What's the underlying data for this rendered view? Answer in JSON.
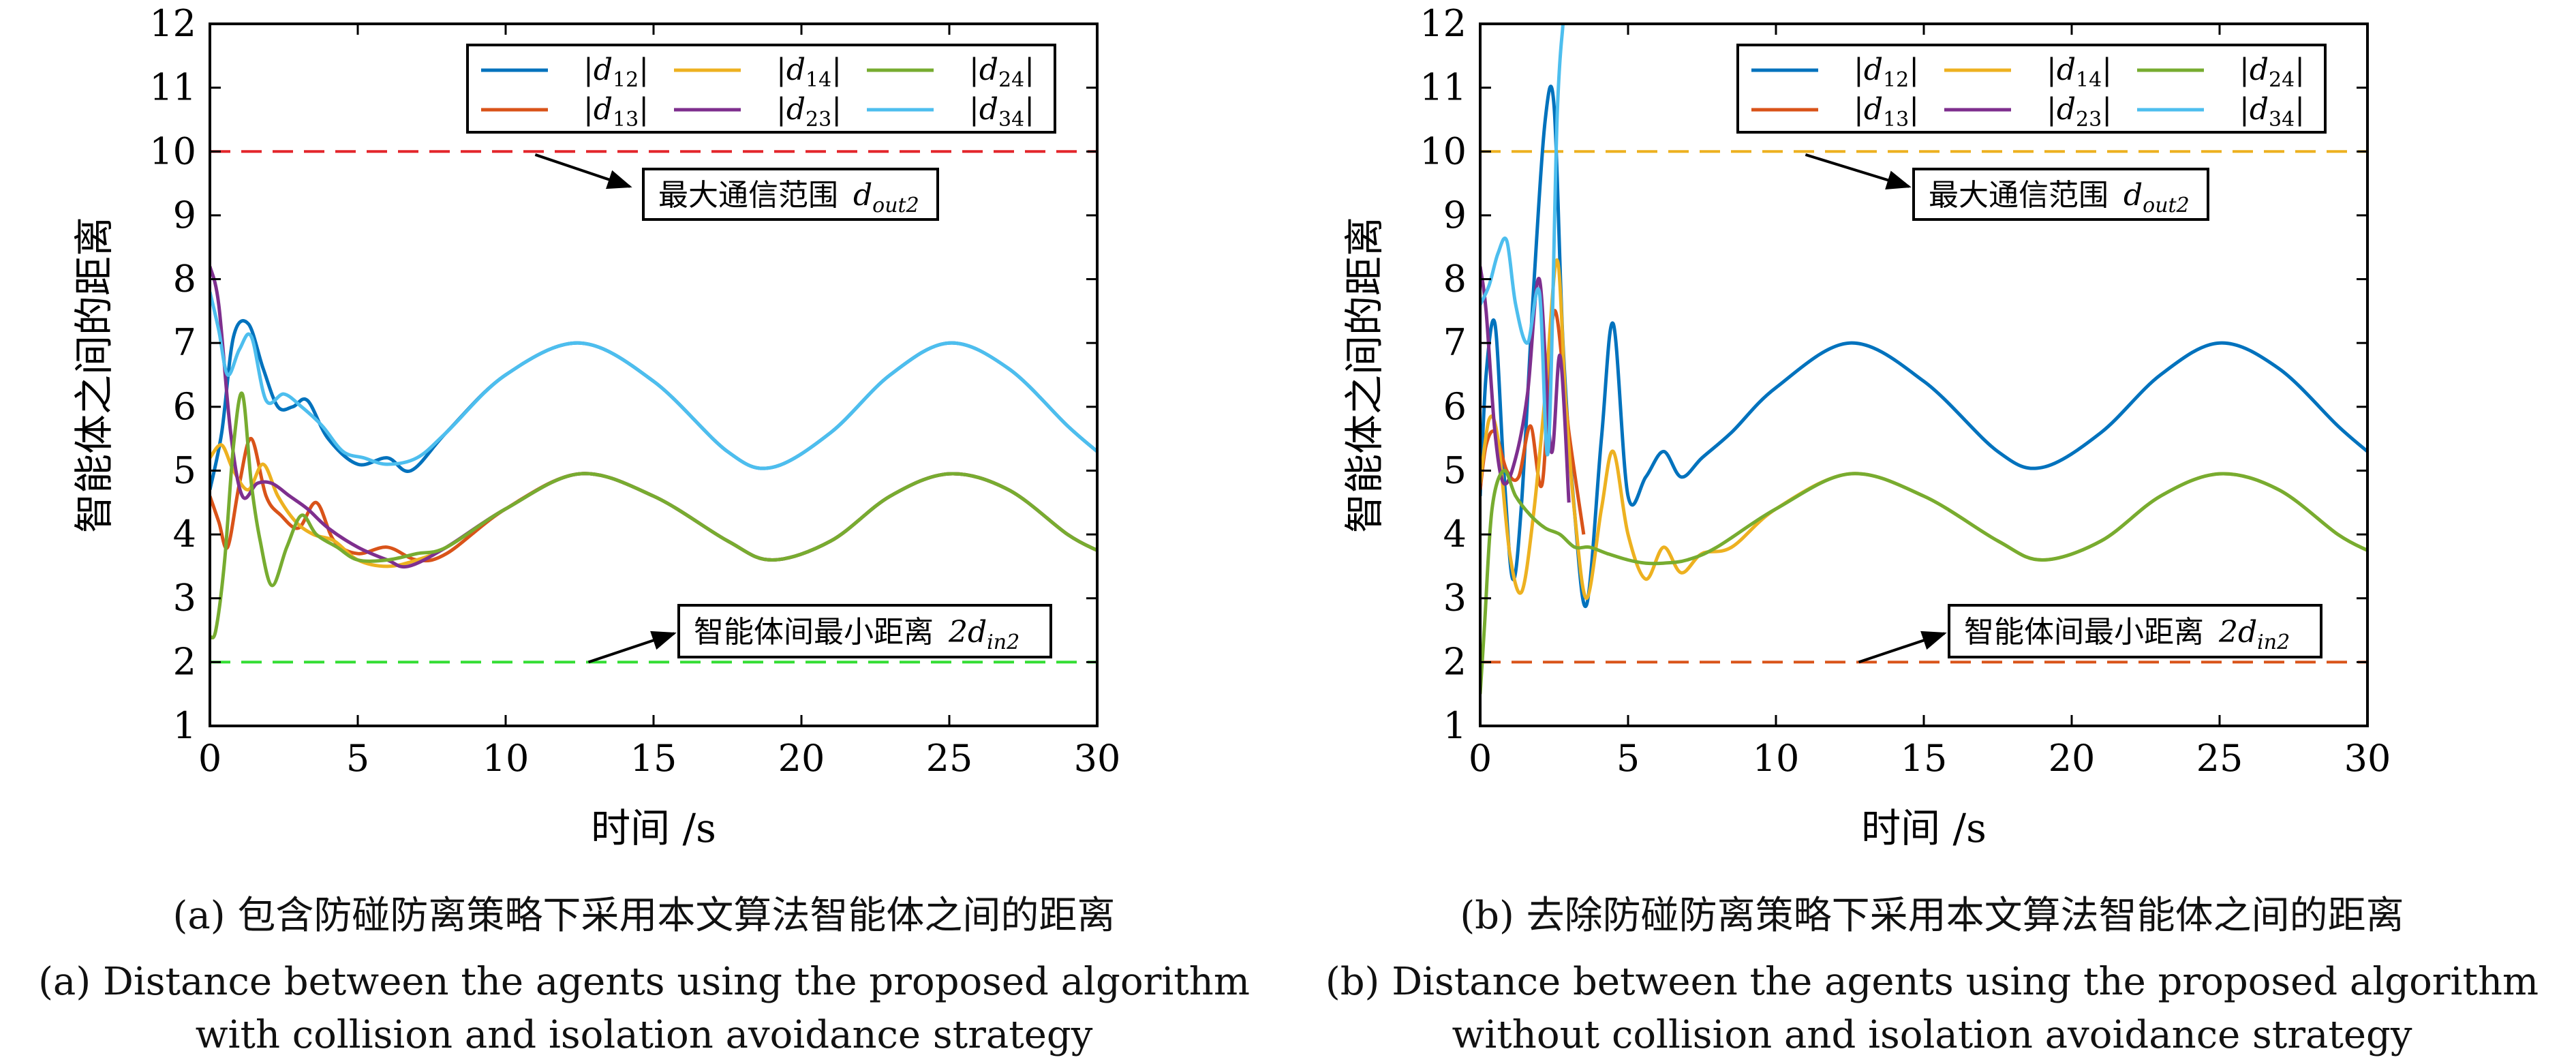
{
  "chart_data": [
    {
      "panel": "a",
      "type": "line",
      "ylabel": "智能体之间的距离",
      "xlabel": "时间 /s",
      "xlim": [
        0,
        30
      ],
      "ylim": [
        1,
        12
      ],
      "xticks": [
        0,
        5,
        10,
        15,
        20,
        25,
        30
      ],
      "yticks": [
        1,
        2,
        3,
        4,
        5,
        6,
        7,
        8,
        9,
        10,
        11,
        12
      ],
      "legend_placement": "top-right",
      "colors": {
        "d12": "#0072BD",
        "d13": "#D95319",
        "d14": "#EDB120",
        "d23": "#7E2F8E",
        "d24": "#77AC30",
        "d34": "#4DBEEE"
      },
      "series": [
        {
          "name": "|d12|",
          "key": "d12",
          "x": [
            0,
            0.4,
            0.8,
            1.3,
            1.8,
            2.3,
            2.8,
            3.3,
            4,
            5,
            6,
            6.8,
            8,
            10,
            12.5,
            15,
            17.5,
            19,
            21,
            23,
            25,
            27,
            29,
            30
          ],
          "y": [
            4.7,
            5.6,
            7.1,
            7.3,
            6.6,
            6.0,
            6.0,
            6.1,
            5.5,
            5.1,
            5.2,
            5.0,
            5.6,
            6.5,
            7.0,
            6.4,
            5.3,
            5.05,
            5.6,
            6.5,
            7.0,
            6.6,
            5.7,
            5.3
          ]
        },
        {
          "name": "|d13|",
          "key": "d13",
          "x": [
            0,
            0.3,
            0.6,
            1.0,
            1.4,
            1.9,
            2.4,
            3.0,
            3.6,
            4.2,
            5,
            6,
            7,
            8,
            10,
            12.5,
            15,
            17.5,
            19,
            21,
            23,
            25,
            27,
            29,
            30
          ],
          "y": [
            4.6,
            4.2,
            3.8,
            4.8,
            5.5,
            4.6,
            4.3,
            4.1,
            4.5,
            3.9,
            3.7,
            3.8,
            3.6,
            3.7,
            4.4,
            4.95,
            4.6,
            3.9,
            3.6,
            3.9,
            4.6,
            4.95,
            4.7,
            4.0,
            3.75
          ]
        },
        {
          "name": "|d14|",
          "key": "d14",
          "x": [
            0,
            0.4,
            0.8,
            1.3,
            1.8,
            2.3,
            2.9,
            3.5,
            4.2,
            5,
            6,
            7,
            8,
            10,
            12.5,
            15,
            17.5,
            19,
            21,
            23,
            25,
            27,
            29,
            30
          ],
          "y": [
            5.2,
            5.4,
            5.0,
            4.7,
            5.1,
            4.6,
            4.2,
            4.0,
            3.9,
            3.6,
            3.5,
            3.6,
            3.8,
            4.4,
            4.95,
            4.6,
            3.9,
            3.6,
            3.9,
            4.6,
            4.95,
            4.7,
            4.0,
            3.75
          ]
        },
        {
          "name": "|d23|",
          "key": "d23",
          "x": [
            0,
            0.3,
            0.7,
            1.1,
            1.6,
            2.1,
            2.7,
            3.3,
            4,
            5,
            6,
            6.7,
            8,
            10,
            12.5,
            15,
            17.5,
            19,
            21,
            23,
            25,
            27,
            29,
            30
          ],
          "y": [
            8.2,
            7.6,
            5.6,
            4.6,
            4.8,
            4.8,
            4.6,
            4.4,
            4.1,
            3.8,
            3.6,
            3.5,
            3.8,
            4.4,
            4.95,
            4.6,
            3.9,
            3.6,
            3.9,
            4.6,
            4.95,
            4.7,
            4.0,
            3.75
          ]
        },
        {
          "name": "|d24|",
          "key": "d24",
          "x": [
            0,
            0.2,
            0.5,
            0.8,
            1.1,
            1.4,
            1.7,
            2.1,
            2.6,
            3.1,
            3.6,
            4.3,
            5,
            6,
            7,
            8,
            10,
            12.5,
            15,
            17.5,
            19,
            21,
            23,
            25,
            27,
            29,
            30
          ],
          "y": [
            2.4,
            2.5,
            3.6,
            5.4,
            6.2,
            4.8,
            3.9,
            3.2,
            3.8,
            4.3,
            4.0,
            3.8,
            3.6,
            3.6,
            3.7,
            3.8,
            4.4,
            4.95,
            4.6,
            3.9,
            3.6,
            3.9,
            4.6,
            4.95,
            4.7,
            4.0,
            3.75
          ]
        },
        {
          "name": "|d34|",
          "key": "d34",
          "x": [
            0,
            0.3,
            0.6,
            1.0,
            1.4,
            1.9,
            2.5,
            3.1,
            3.8,
            4.5,
            5.2,
            6,
            7,
            8,
            10,
            12.5,
            15,
            17.5,
            19,
            21,
            23,
            25,
            27,
            29,
            30
          ],
          "y": [
            7.8,
            7.2,
            6.5,
            6.9,
            7.1,
            6.1,
            6.2,
            6.0,
            5.7,
            5.3,
            5.2,
            5.1,
            5.2,
            5.6,
            6.5,
            7.0,
            6.4,
            5.3,
            5.05,
            5.6,
            6.5,
            7.0,
            6.6,
            5.7,
            5.3
          ]
        }
      ],
      "reference_lines": [
        {
          "y": 10,
          "color": "#E3262C",
          "label": "最大通信范围",
          "sym": "d",
          "sub": "out2",
          "arrow": {
            "from": [
              11.0,
              9.95
            ],
            "to": [
              14.2,
              9.45
            ]
          }
        },
        {
          "y": 2,
          "color": "#33DD33",
          "label": "智能体间最小距离",
          "sym": "2d",
          "sub": "in2",
          "arrow": {
            "from": [
              12.8,
              2.0
            ],
            "to": [
              15.7,
              2.45
            ]
          }
        }
      ],
      "legend": {
        "columns": [
          [
            "|d12|",
            "|d13|"
          ],
          [
            "|d14|",
            "|d23|"
          ],
          [
            "|d24|",
            "|d34|"
          ]
        ]
      },
      "caption_zh": "(a) 包含防碰防离策略下采用本文算法智能体之间的距离",
      "caption_en_1": "(a) Distance between the agents using the proposed algorithm",
      "caption_en_2": "with collision and isolation avoidance strategy"
    },
    {
      "panel": "b",
      "type": "line",
      "ylabel": "智能体之间的距离",
      "xlabel": "时间 /s",
      "xlim": [
        0,
        30
      ],
      "ylim": [
        1,
        12
      ],
      "xticks": [
        0,
        5,
        10,
        15,
        20,
        25,
        30
      ],
      "yticks": [
        1,
        2,
        3,
        4,
        5,
        6,
        7,
        8,
        9,
        10,
        11,
        12
      ],
      "legend_placement": "top-right",
      "colors": {
        "d12": "#0072BD",
        "d13": "#D95319",
        "d14": "#EDB120",
        "d23": "#7E2F8E",
        "d24": "#77AC30",
        "d34": "#4DBEEE"
      },
      "series": [
        {
          "name": "|d12|",
          "key": "d12",
          "x": [
            0,
            0.2,
            0.5,
            0.8,
            1.1,
            1.4,
            1.8,
            2.2,
            2.5,
            2.8,
            3.2,
            3.6,
            4.1,
            4.5,
            5,
            5.6,
            6.2,
            6.8,
            7.5,
            8.5,
            10,
            12.5,
            15,
            17.5,
            19,
            21,
            23,
            25,
            27,
            29,
            30
          ],
          "y": [
            4.6,
            6.5,
            7.3,
            5.0,
            3.3,
            4.5,
            7.8,
            10.5,
            10.7,
            7.0,
            4.3,
            2.9,
            5.5,
            7.3,
            4.6,
            4.9,
            5.3,
            4.9,
            5.2,
            5.6,
            6.3,
            7.0,
            6.4,
            5.3,
            5.05,
            5.6,
            6.5,
            7.0,
            6.6,
            5.7,
            5.3
          ]
        },
        {
          "name": "|d13|",
          "key": "d13",
          "x": [
            0,
            0.2,
            0.5,
            0.9,
            1.3,
            1.7,
            2.1,
            2.5,
            3.0,
            3.5
          ],
          "y": [
            4.7,
            5.4,
            5.6,
            5.0,
            4.9,
            5.7,
            4.8,
            7.5,
            5.6,
            4.0
          ]
        },
        {
          "name": "|d14|",
          "key": "d14",
          "x": [
            0,
            0.3,
            0.6,
            1.0,
            1.4,
            1.8,
            2.2,
            2.6,
            2.9,
            3.2,
            3.6,
            4.1,
            4.5,
            5,
            5.6,
            6.2,
            6.8,
            7.5,
            8.5,
            10,
            12.5,
            15,
            17.5,
            19,
            21,
            23,
            25,
            27,
            29,
            30
          ],
          "y": [
            4.8,
            5.8,
            5.5,
            3.7,
            3.1,
            4.3,
            6.2,
            8.3,
            6.0,
            4.3,
            3.0,
            4.4,
            5.3,
            4.0,
            3.3,
            3.8,
            3.4,
            3.7,
            3.8,
            4.4,
            4.95,
            4.6,
            3.9,
            3.6,
            3.9,
            4.6,
            4.95,
            4.7,
            4.0,
            3.75
          ]
        },
        {
          "name": "|d23|",
          "key": "d23",
          "x": [
            0,
            0.2,
            0.5,
            0.8,
            1.2,
            1.6,
            2.0,
            2.4,
            2.7,
            3.0
          ],
          "y": [
            8.2,
            7.5,
            5.6,
            4.8,
            5.2,
            6.2,
            8.0,
            5.3,
            6.8,
            4.5
          ]
        },
        {
          "name": "|d24|",
          "key": "d24",
          "x": [
            0,
            0.15,
            0.4,
            0.8,
            1.2,
            1.7,
            2.2,
            2.7,
            3.2,
            3.7,
            4.3,
            5,
            5.6,
            6.2,
            7,
            8,
            10,
            12.5,
            15,
            17.5,
            19,
            21,
            23,
            25,
            27,
            29,
            30
          ],
          "y": [
            1.5,
            2.6,
            4.4,
            5.0,
            4.6,
            4.3,
            4.1,
            4.0,
            3.8,
            3.8,
            3.7,
            3.6,
            3.55,
            3.55,
            3.6,
            3.8,
            4.4,
            4.95,
            4.6,
            3.9,
            3.6,
            3.9,
            4.6,
            4.95,
            4.7,
            4.0,
            3.75
          ]
        },
        {
          "name": "|d34|",
          "key": "d34",
          "x": [
            0,
            0.3,
            0.6,
            0.9,
            1.2,
            1.6,
            2.0,
            2.3,
            2.6,
            2.8
          ],
          "y": [
            7.6,
            7.9,
            8.4,
            8.6,
            7.6,
            7.0,
            7.8,
            5.3,
            10.5,
            12.0
          ]
        }
      ],
      "reference_lines": [
        {
          "y": 10,
          "color": "#EDB120",
          "label": "最大通信范围",
          "sym": "d",
          "sub": "out2",
          "arrow": {
            "from": [
              11.0,
              9.95
            ],
            "to": [
              14.5,
              9.45
            ]
          }
        },
        {
          "y": 2,
          "color": "#D95319",
          "label": "智能体间最小距离",
          "sym": "2d",
          "sub": "in2",
          "arrow": {
            "from": [
              12.8,
              2.0
            ],
            "to": [
              15.7,
              2.45
            ]
          }
        }
      ],
      "legend": {
        "columns": [
          [
            "|d12|",
            "|d13|"
          ],
          [
            "|d14|",
            "|d23|"
          ],
          [
            "|d24|",
            "|d34|"
          ]
        ]
      },
      "caption_zh": "(b) 去除防碰防离策略下采用本文算法智能体之间的距离",
      "caption_en_1": "(b) Distance between the agents using the proposed algorithm",
      "caption_en_2": "without collision and isolation avoidance strategy"
    }
  ]
}
